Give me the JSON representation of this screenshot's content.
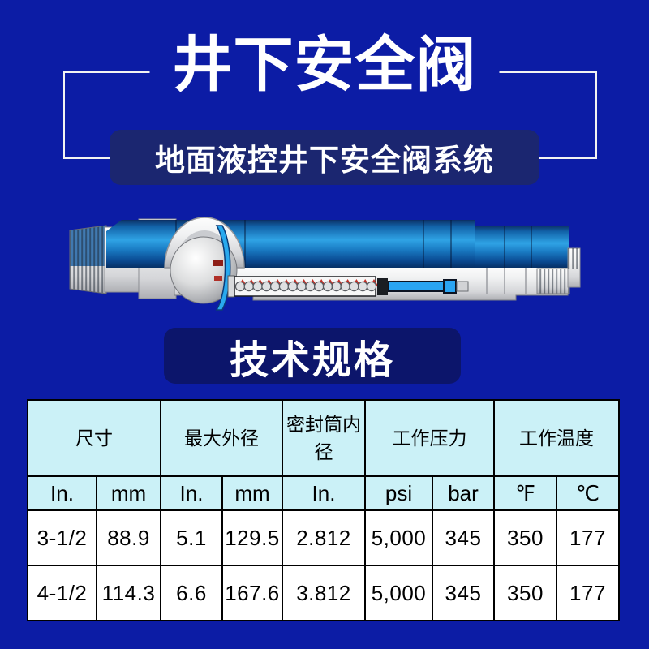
{
  "colors": {
    "page_bg": "#0c1ca5",
    "subtitle_box_bg": "#1b2670",
    "section_box_bg": "#0c156b",
    "table_header_bg": "#cbf1f7",
    "table_border": "#000000",
    "title_text": "#ffffff",
    "valve_blue": "#2fa3e5",
    "valve_grey": "#d5d6d9"
  },
  "header": {
    "title": "井下安全阀",
    "subtitle": "地面液控井下安全阀系统"
  },
  "illustration": {
    "name": "downhole-safety-valve-cutaway-diagram"
  },
  "section": {
    "title": "技术规格"
  },
  "spec_table": {
    "group_headers": [
      {
        "label": "尺寸",
        "span": 2
      },
      {
        "label": "最大外径",
        "span": 2
      },
      {
        "label": "密封筒内径",
        "span": 1
      },
      {
        "label": "工作压力",
        "span": 2
      },
      {
        "label": "工作温度",
        "span": 2
      }
    ],
    "unit_headers": [
      "In.",
      "mm",
      "In.",
      "mm",
      "In.",
      "psi",
      "bar",
      "℉",
      "℃"
    ],
    "rows": [
      [
        "3-1/2",
        "88.9",
        "5.1",
        "129.5",
        "2.812",
        "5,000",
        "345",
        "350",
        "177"
      ],
      [
        "4-1/2",
        "114.3",
        "6.6",
        "167.6",
        "3.812",
        "5,000",
        "345",
        "350",
        "177"
      ]
    ]
  }
}
